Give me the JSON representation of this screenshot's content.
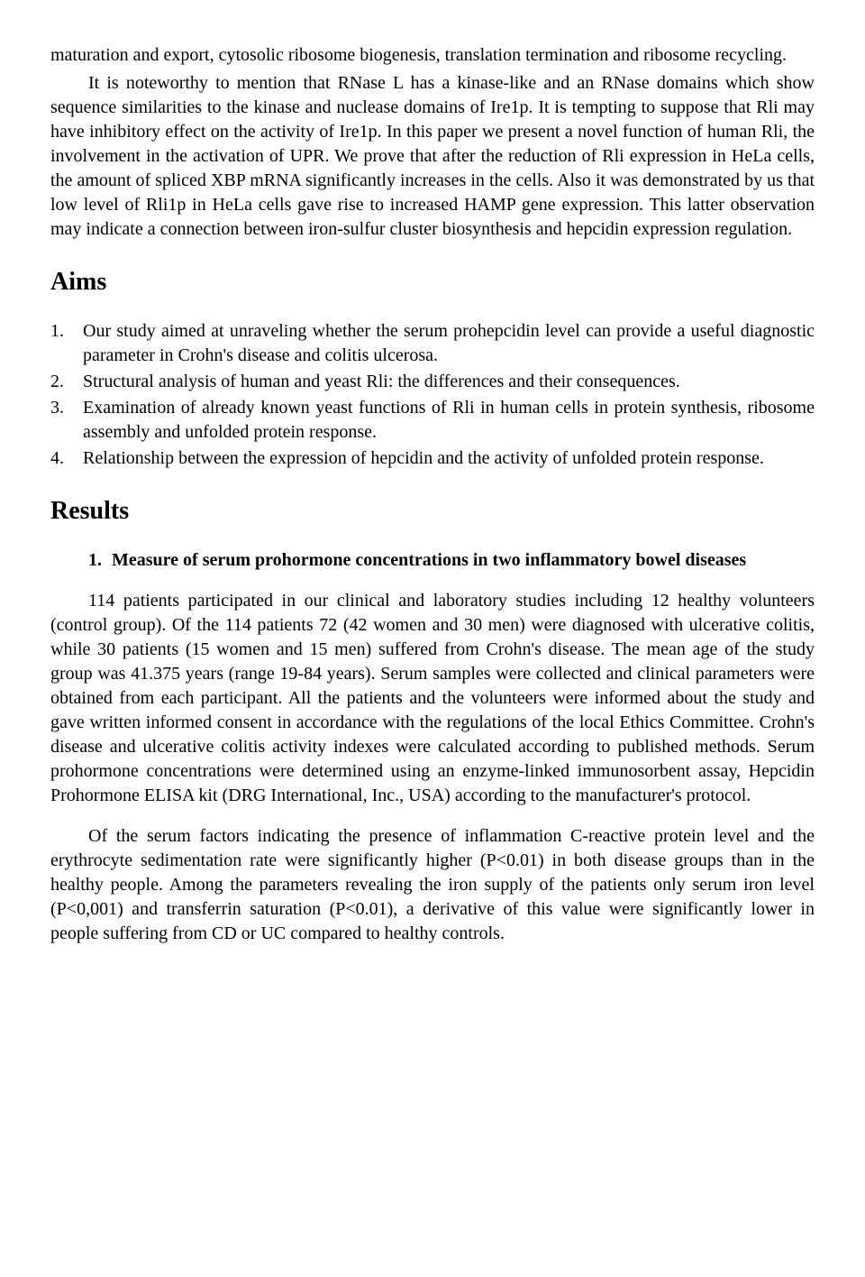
{
  "p1": "maturation and export, cytosolic ribosome biogenesis, translation termination and ribosome recycling.",
  "p2": "It is noteworthy to mention that RNase L has a kinase-like and an RNase domains which show sequence similarities to the kinase and nuclease domains of Ire1p. It is tempting to suppose that Rli may have inhibitory effect on the activity of Ire1p. In this paper we present a novel function of human Rli, the involvement in the activation of UPR. We prove that after the reduction of Rli expression in HeLa cells, the amount of spliced XBP mRNA significantly increases in the cells. Also it was demonstrated by us that low level of Rli1p in HeLa cells gave rise to increased HAMP gene expression. This latter observation may indicate a connection between iron-sulfur cluster biosynthesis and hepcidin expression regulation.",
  "aims_heading": "Aims",
  "aims": [
    "Our study aimed at unraveling whether the serum prohepcidin level can provide a useful diagnostic parameter in Crohn's disease and colitis ulcerosa.",
    "Structural analysis of human and yeast Rli: the differences and their consequences.",
    "Examination of already known yeast functions of Rli in human cells in protein synthesis, ribosome assembly and unfolded protein response.",
    "Relationship between the expression of hepcidin and the activity of unfolded protein response."
  ],
  "results_heading": "Results",
  "result1_num": "1.",
  "result1_title": "Measure of serum prohormone concentrations in two inflammatory bowel diseases",
  "r1_p1": "114 patients participated in our clinical and laboratory studies including 12 healthy volunteers (control group). Of the 114 patients 72 (42 women and 30 men) were diagnosed with ulcerative colitis, while 30 patients (15 women and 15 men) suffered from Crohn's disease. The mean age of the study group was 41.375 years (range 19-84 years). Serum samples were collected and clinical parameters were obtained from each participant. All the patients and the volunteers were informed about the study and gave written informed consent in accordance with the regulations of the local Ethics Committee. Crohn's disease and ulcerative colitis activity indexes were calculated according to published methods. Serum prohormone concentrations were determined using an enzyme-linked immunosorbent assay, Hepcidin Prohormone ELISA kit (DRG International, Inc., USA) according to the manufacturer's protocol.",
  "r1_p2": "Of the serum factors indicating the presence of inflammation C-reactive protein level and the erythrocyte sedimentation rate were significantly higher (P<0.01) in both disease groups than in the healthy people. Among the parameters revealing the iron supply of the patients only serum iron level (P<0,001) and transferrin saturation (P<0.01), a derivative of this value were significantly lower in people suffering from CD or UC compared to healthy controls."
}
